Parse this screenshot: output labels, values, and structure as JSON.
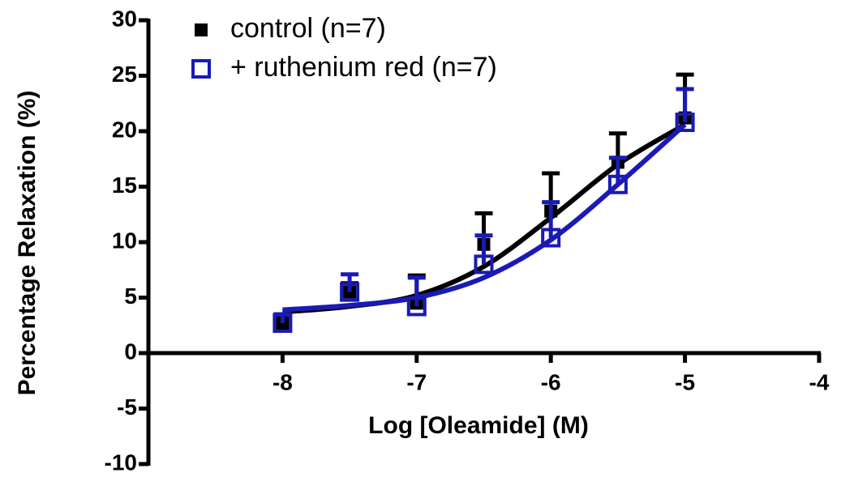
{
  "chart_data": {
    "type": "scatter",
    "x_label": "Log [Oleamide] (M)",
    "y_label": "Percentage Relaxation (%)",
    "xlim": [
      -9,
      -4
    ],
    "xticks": [
      -8,
      -7,
      -6,
      -5,
      -4
    ],
    "ylim": [
      -10,
      30
    ],
    "yticks": [
      -10,
      -5,
      0,
      5,
      10,
      15,
      20,
      25,
      30
    ],
    "legend": "upper left",
    "series": [
      {
        "name": "control (n=7)",
        "color": "#000000",
        "marker": "filled-square",
        "x": [
          -8,
          -7.5,
          -7,
          -6.5,
          -6,
          -5.5,
          -5
        ],
        "values": [
          2.7,
          5.5,
          4.5,
          9.8,
          12.8,
          17.2,
          21.2
        ],
        "errors": [
          0.8,
          0.8,
          2.5,
          2.8,
          3.4,
          2.6,
          3.9
        ],
        "fit": {
          "x": [
            -8,
            -7.5,
            -7,
            -6.5,
            -6,
            -5.5,
            -5
          ],
          "values": [
            3.7,
            4.2,
            5.2,
            7.8,
            12.2,
            17.0,
            20.6
          ]
        }
      },
      {
        "name": "+ ruthenium red (n=7)",
        "color": "#1a1ab4",
        "marker": "open-square",
        "x": [
          -8,
          -7.5,
          -7,
          -6.5,
          -6,
          -5.5,
          -5
        ],
        "values": [
          2.7,
          5.5,
          4.2,
          8.0,
          10.4,
          15.2,
          20.8
        ],
        "errors": [
          0.8,
          1.6,
          2.6,
          2.6,
          3.2,
          2.4,
          3.0
        ],
        "fit": {
          "x": [
            -8,
            -7.5,
            -7,
            -6.5,
            -6,
            -5.5,
            -5
          ],
          "values": [
            3.9,
            4.3,
            5.0,
            6.8,
            10.2,
            15.2,
            20.6
          ]
        }
      }
    ]
  }
}
